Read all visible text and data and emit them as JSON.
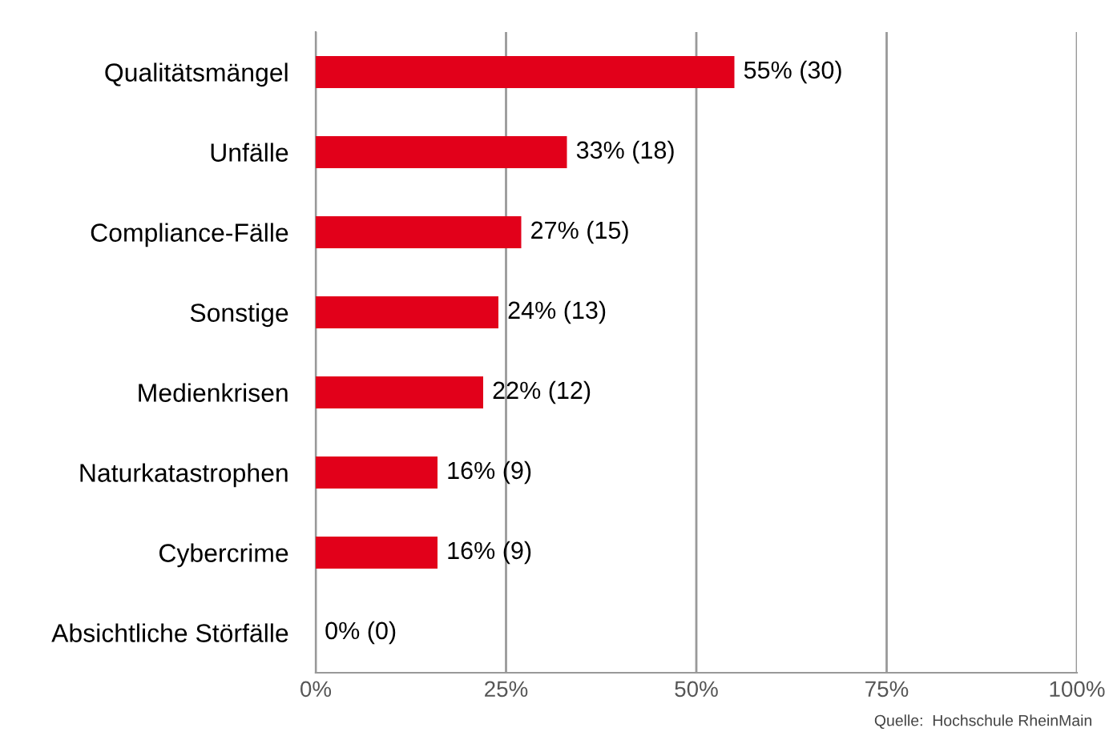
{
  "chart_data": {
    "type": "bar",
    "orientation": "horizontal",
    "categories": [
      "Qualitätsmängel",
      "Unfälle",
      "Compliance-Fälle",
      "Sonstige",
      "Medienkrisen",
      "Naturkatastrophen",
      "Cybercrime",
      "Absichtliche Störfälle"
    ],
    "values": [
      55,
      33,
      27,
      24,
      22,
      16,
      16,
      0
    ],
    "value_labels": [
      "55% (30)",
      "33% (18)",
      "27% (15)",
      "24% (13)",
      "22% (12)",
      "16% (9)",
      "16% (9)",
      "0% (0)"
    ],
    "color": "#e2001a",
    "xlim": [
      0,
      100
    ],
    "xticks": [
      {
        "value": 0,
        "label": "0%"
      },
      {
        "value": 25,
        "label": "25%"
      },
      {
        "value": 50,
        "label": "50%"
      },
      {
        "value": 75,
        "label": "75%"
      },
      {
        "value": 100,
        "label": "100%"
      }
    ],
    "grid": "x",
    "legend": false,
    "annotations": [
      "Quelle:  Hochschule RheinMain"
    ]
  }
}
